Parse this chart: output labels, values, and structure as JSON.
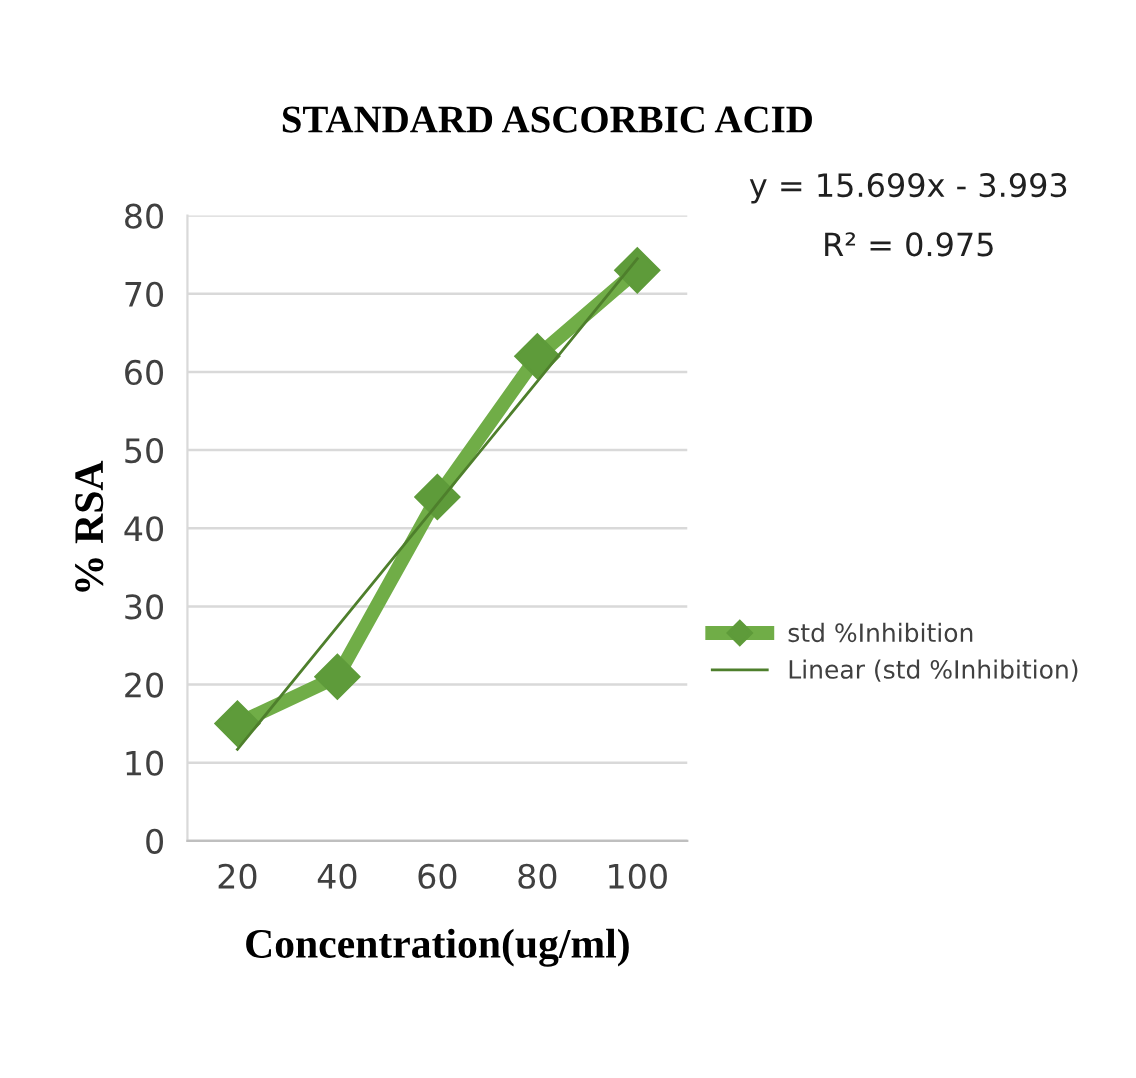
{
  "chart_data": {
    "type": "line",
    "title": "STANDARD ASCORBIC ACID",
    "xlabel": "Concentration(ug/ml)",
    "ylabel": "% RSA",
    "categories": [
      "20",
      "40",
      "60",
      "80",
      "100"
    ],
    "series": [
      {
        "name": "std %Inhibition",
        "color": "#70ad47",
        "values": [
          15,
          21,
          44,
          62,
          73
        ],
        "marker": "diamond",
        "line_style": "solid"
      },
      {
        "name": "Linear (std %Inhibition)",
        "color": "#4e7f2c",
        "values": [
          11.7,
          27.4,
          43.1,
          58.8,
          74.5
        ],
        "marker": "none",
        "line_style": "solid"
      }
    ],
    "ylim": [
      0,
      80
    ],
    "yticks": [
      0,
      10,
      20,
      30,
      40,
      50,
      60,
      70,
      80
    ],
    "grid": "y",
    "legend": "right",
    "annotations": [
      "y = 15.699x - 3.993",
      "R² = 0.975"
    ]
  }
}
